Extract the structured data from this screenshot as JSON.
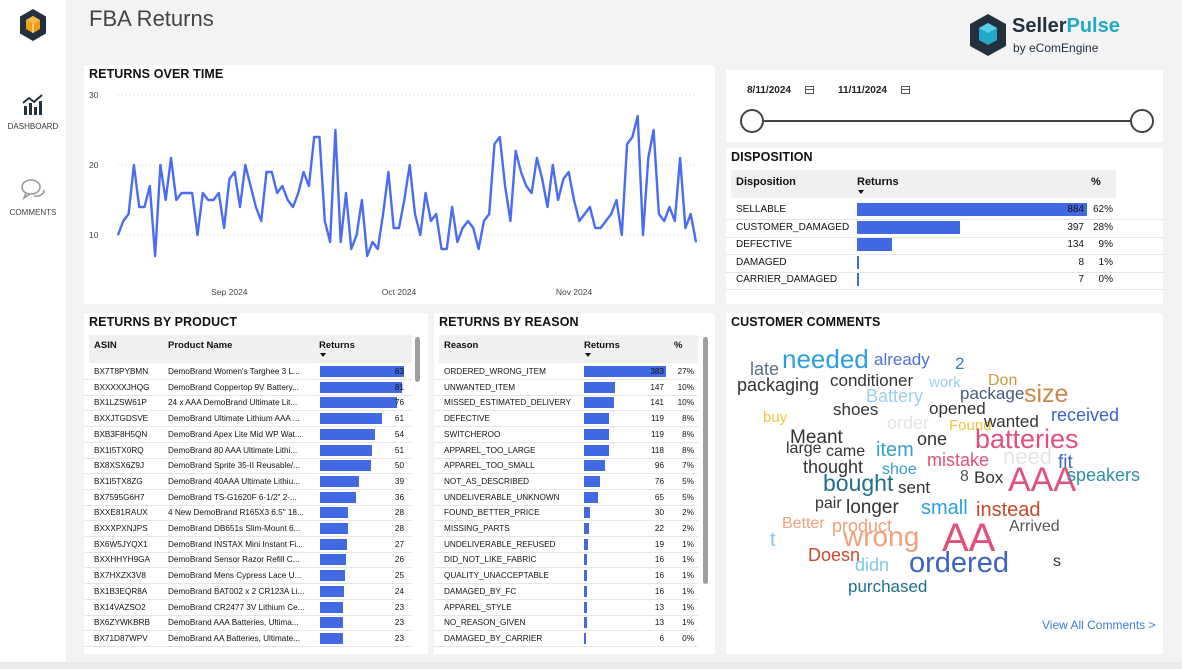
{
  "app": {
    "title": "FBA Returns"
  },
  "brand": {
    "name_part1": "Seller",
    "name_part2": "Pulse",
    "sub": "by eComEngine"
  },
  "nav": [
    {
      "label": "DASHBOARD",
      "icon": "bar-chart-icon"
    },
    {
      "label": "COMMENTS",
      "icon": "chat-bubbles-icon"
    }
  ],
  "colors": {
    "accent": "#4169e1",
    "line": "#4a6cf0",
    "brand_teal": "#23a8c9",
    "brand_dark": "#23313f"
  },
  "time_chart": {
    "title": "RETURNS OVER TIME",
    "chart_data": {
      "type": "line",
      "title": "RETURNS OVER TIME",
      "xlabel": "",
      "ylabel": "",
      "ylim": [
        5,
        30
      ],
      "y_ticks": [
        30,
        20,
        10
      ],
      "x_tick_labels": [
        "Sep 2024",
        "Oct 2024",
        "Nov 2024"
      ],
      "x_tick_index": [
        21,
        53,
        86
      ],
      "x_range": [
        "2024-08-11",
        "2024-11-11"
      ],
      "grid": true,
      "series": [
        {
          "values": [
            10,
            12,
            13,
            20,
            14,
            14,
            17,
            7,
            20,
            15,
            21,
            15,
            16,
            16,
            16,
            10,
            16,
            15,
            15,
            16,
            11,
            18,
            19,
            14,
            20,
            17,
            14,
            12,
            19,
            19,
            16,
            17,
            15,
            14,
            16,
            19,
            17,
            24,
            24,
            12,
            9,
            25,
            9,
            16,
            8,
            10,
            15,
            7,
            9,
            8,
            13,
            19,
            11,
            11,
            15,
            20,
            13,
            10,
            16,
            12,
            13,
            8,
            8,
            14,
            9,
            11,
            12,
            11,
            8,
            12,
            13,
            23,
            24,
            17,
            12,
            22,
            19,
            17,
            16,
            21,
            18,
            14,
            20,
            15,
            18,
            19,
            15,
            12,
            13,
            14,
            11,
            11,
            12,
            13,
            15,
            10,
            23,
            24,
            27,
            10,
            21,
            25,
            13,
            12,
            14,
            12,
            21,
            11,
            13,
            9
          ]
        }
      ]
    }
  },
  "date_slicer": {
    "start": "8/11/2024",
    "end": "11/11/2024"
  },
  "disposition": {
    "title": "DISPOSITION",
    "col_disposition": "Disposition",
    "col_returns": "Returns",
    "col_pct": "%",
    "rows": [
      {
        "name": "SELLABLE",
        "returns": "884",
        "pct": "62%",
        "value": 884
      },
      {
        "name": "CUSTOMER_DAMAGED",
        "returns": "397",
        "pct": "28%",
        "value": 397
      },
      {
        "name": "DEFECTIVE",
        "returns": "134",
        "pct": "9%",
        "value": 134
      },
      {
        "name": "DAMAGED",
        "returns": "8",
        "pct": "1%",
        "value": 8
      },
      {
        "name": "CARRIER_DAMAGED",
        "returns": "7",
        "pct": "0%",
        "value": 7
      }
    ],
    "max": 884
  },
  "products": {
    "title": "RETURNS BY PRODUCT",
    "col_asin": "ASIN",
    "col_name": "Product Name",
    "col_returns": "Returns",
    "max": 83,
    "rows": [
      {
        "asin": "BX7T8PYBMN",
        "name": "DemoBrand Women's Targhee 3 L...",
        "returns": "83",
        "value": 83
      },
      {
        "asin": "BXXXXXJHQG",
        "name": "DemoBrand Coppertop 9V Battery...",
        "returns": "81",
        "value": 81
      },
      {
        "asin": "BX1LZSW61P",
        "name": "24 x AAA DemoBrand Ultimate Lit...",
        "returns": "76",
        "value": 76
      },
      {
        "asin": "BXXJTGDSVE",
        "name": "DemoBrand Ultimate Lithium AAA ...",
        "returns": "61",
        "value": 61
      },
      {
        "asin": "BXB3F8H5QN",
        "name": "DemoBrand Apex Lite Mid WP Wat...",
        "returns": "54",
        "value": 54
      },
      {
        "asin": "BX1I5TX0RQ",
        "name": "DemoBrand 80 AAA Ultimate Lithi...",
        "returns": "51",
        "value": 51
      },
      {
        "asin": "BX8XSX6Z9J",
        "name": "DemoBrand Sprite 35-II Reusable/...",
        "returns": "50",
        "value": 50
      },
      {
        "asin": "BX1I5TX8ZG",
        "name": "DemoBrand 40AAA Ultimate Lithiu...",
        "returns": "39",
        "value": 39
      },
      {
        "asin": "BX7595G6H7",
        "name": "DemoBrand TS-G1620F 6-1/2\" 2-...",
        "returns": "36",
        "value": 36
      },
      {
        "asin": "BXXE81RAUX",
        "name": "4 New DemoBrand R165X3 6.5\" 18...",
        "returns": "28",
        "value": 28
      },
      {
        "asin": "BXXXPXNJPS",
        "name": "DemoBrand DB651s Slim-Mount 6...",
        "returns": "28",
        "value": 28
      },
      {
        "asin": "BX6W5JYQX1",
        "name": "DemoBrand INSTAX Mini Instant Fi...",
        "returns": "27",
        "value": 27
      },
      {
        "asin": "BXXHHYH9GA",
        "name": "DemoBrand Sensor Razor Refill C...",
        "returns": "26",
        "value": 26
      },
      {
        "asin": "BX7HXZX3V8",
        "name": "DemoBrand Mens Cypress Lace U...",
        "returns": "25",
        "value": 25
      },
      {
        "asin": "BX1B3EQR8A",
        "name": "DemoBrand BAT002 x 2 CR123A Li...",
        "returns": "24",
        "value": 24
      },
      {
        "asin": "BX14VAZSO2",
        "name": "DemoBrand CR2477 3V Lithium Ce...",
        "returns": "23",
        "value": 23
      },
      {
        "asin": "BX6ZYWKBRB",
        "name": "DemoBrand AAA Batteries, Ultima...",
        "returns": "23",
        "value": 23
      },
      {
        "asin": "BX71D87WPV",
        "name": "DemoBrand AA Batteries, Ultimate...",
        "returns": "23",
        "value": 23
      }
    ]
  },
  "reasons": {
    "title": "RETURNS BY REASON",
    "col_reason": "Reason",
    "col_returns": "Returns",
    "col_pct": "%",
    "max": 383,
    "rows": [
      {
        "reason": "ORDERED_WRONG_ITEM",
        "returns": "383",
        "pct": "27%",
        "value": 383
      },
      {
        "reason": "UNWANTED_ITEM",
        "returns": "147",
        "pct": "10%",
        "value": 147
      },
      {
        "reason": "MISSED_ESTIMATED_DELIVERY",
        "returns": "141",
        "pct": "10%",
        "value": 141
      },
      {
        "reason": "DEFECTIVE",
        "returns": "119",
        "pct": "8%",
        "value": 119
      },
      {
        "reason": "SWITCHEROO",
        "returns": "119",
        "pct": "8%",
        "value": 119
      },
      {
        "reason": "APPAREL_TOO_LARGE",
        "returns": "118",
        "pct": "8%",
        "value": 118
      },
      {
        "reason": "APPAREL_TOO_SMALL",
        "returns": "96",
        "pct": "7%",
        "value": 96
      },
      {
        "reason": "NOT_AS_DESCRIBED",
        "returns": "76",
        "pct": "5%",
        "value": 76
      },
      {
        "reason": "UNDELIVERABLE_UNKNOWN",
        "returns": "65",
        "pct": "5%",
        "value": 65
      },
      {
        "reason": "FOUND_BETTER_PRICE",
        "returns": "30",
        "pct": "2%",
        "value": 30
      },
      {
        "reason": "MISSING_PARTS",
        "returns": "22",
        "pct": "2%",
        "value": 22
      },
      {
        "reason": "UNDELIVERABLE_REFUSED",
        "returns": "19",
        "pct": "1%",
        "value": 19
      },
      {
        "reason": "DID_NOT_LIKE_FABRIC",
        "returns": "16",
        "pct": "1%",
        "value": 16
      },
      {
        "reason": "QUALITY_UNACCEPTABLE",
        "returns": "16",
        "pct": "1%",
        "value": 16
      },
      {
        "reason": "DAMAGED_BY_FC",
        "returns": "16",
        "pct": "1%",
        "value": 16
      },
      {
        "reason": "APPAREL_STYLE",
        "returns": "13",
        "pct": "1%",
        "value": 13
      },
      {
        "reason": "NO_REASON_GIVEN",
        "returns": "13",
        "pct": "1%",
        "value": 13
      },
      {
        "reason": "DAMAGED_BY_CARRIER",
        "returns": "6",
        "pct": "0%",
        "value": 6
      }
    ]
  },
  "comments": {
    "title": "CUSTOMER COMMENTS",
    "view_all": "View All Comments >",
    "words": [
      {
        "text": "late",
        "color": "#5b6f86"
      },
      {
        "text": "needed",
        "color": "#2b9fe0"
      },
      {
        "text": "already",
        "color": "#4e6fd6"
      },
      {
        "text": "2",
        "color": "#3b7e9e"
      },
      {
        "text": "packaging",
        "color": "#333333"
      },
      {
        "text": "conditioner",
        "color": "#333333"
      },
      {
        "text": "work",
        "color": "#9bd0ee"
      },
      {
        "text": "Don",
        "color": "#c99a3b"
      },
      {
        "text": "Battery",
        "color": "#9bd0ee"
      },
      {
        "text": "package",
        "color": "#4a5a7a"
      },
      {
        "text": "size",
        "color": "#c88a4a"
      },
      {
        "text": "shoes",
        "color": "#333333"
      },
      {
        "text": "opened",
        "color": "#333333"
      },
      {
        "text": "received",
        "color": "#3b62c6"
      },
      {
        "text": "buy",
        "color": "#f0c53a"
      },
      {
        "text": "order",
        "color": "#e4e4e4"
      },
      {
        "text": "Found",
        "color": "#f0c53a"
      },
      {
        "text": "wanted",
        "color": "#333333"
      },
      {
        "text": "Meant",
        "color": "#333333"
      },
      {
        "text": "one",
        "color": "#333333"
      },
      {
        "text": "batteries",
        "color": "#e0507a"
      },
      {
        "text": "large",
        "color": "#333333"
      },
      {
        "text": "came",
        "color": "#333333"
      },
      {
        "text": "item",
        "color": "#35a0c8"
      },
      {
        "text": "mistake",
        "color": "#e0507a"
      },
      {
        "text": "need",
        "color": "#e4e4e4"
      },
      {
        "text": "fit",
        "color": "#3b62c6"
      },
      {
        "text": "thought",
        "color": "#333333"
      },
      {
        "text": "shoe",
        "color": "#35a0c8"
      },
      {
        "text": "8",
        "color": "#555555"
      },
      {
        "text": "Box",
        "color": "#333333"
      },
      {
        "text": "AAA",
        "color": "#e0507a"
      },
      {
        "text": "speakers",
        "color": "#2c8fa8"
      },
      {
        "text": "bought",
        "color": "#1f6f8b"
      },
      {
        "text": "sent",
        "color": "#333333"
      },
      {
        "text": "pair",
        "color": "#333333"
      },
      {
        "text": "longer",
        "color": "#333333"
      },
      {
        "text": "small",
        "color": "#2b9fe0"
      },
      {
        "text": "instead",
        "color": "#c44a2a"
      },
      {
        "text": "Better",
        "color": "#f0a07a"
      },
      {
        "text": "product",
        "color": "#f0a07a"
      },
      {
        "text": "Arrived",
        "color": "#555555"
      },
      {
        "text": "t",
        "color": "#7ec8e8"
      },
      {
        "text": "wrong",
        "color": "#f0a07a"
      },
      {
        "text": "AA",
        "color": "#e0507a"
      },
      {
        "text": "Doesn",
        "color": "#c44a2a"
      },
      {
        "text": "didn",
        "color": "#7ec8e8"
      },
      {
        "text": "ordered",
        "color": "#3b62c6"
      },
      {
        "text": "s",
        "color": "#333333"
      },
      {
        "text": "purchased",
        "color": "#1f6f8b"
      }
    ]
  }
}
